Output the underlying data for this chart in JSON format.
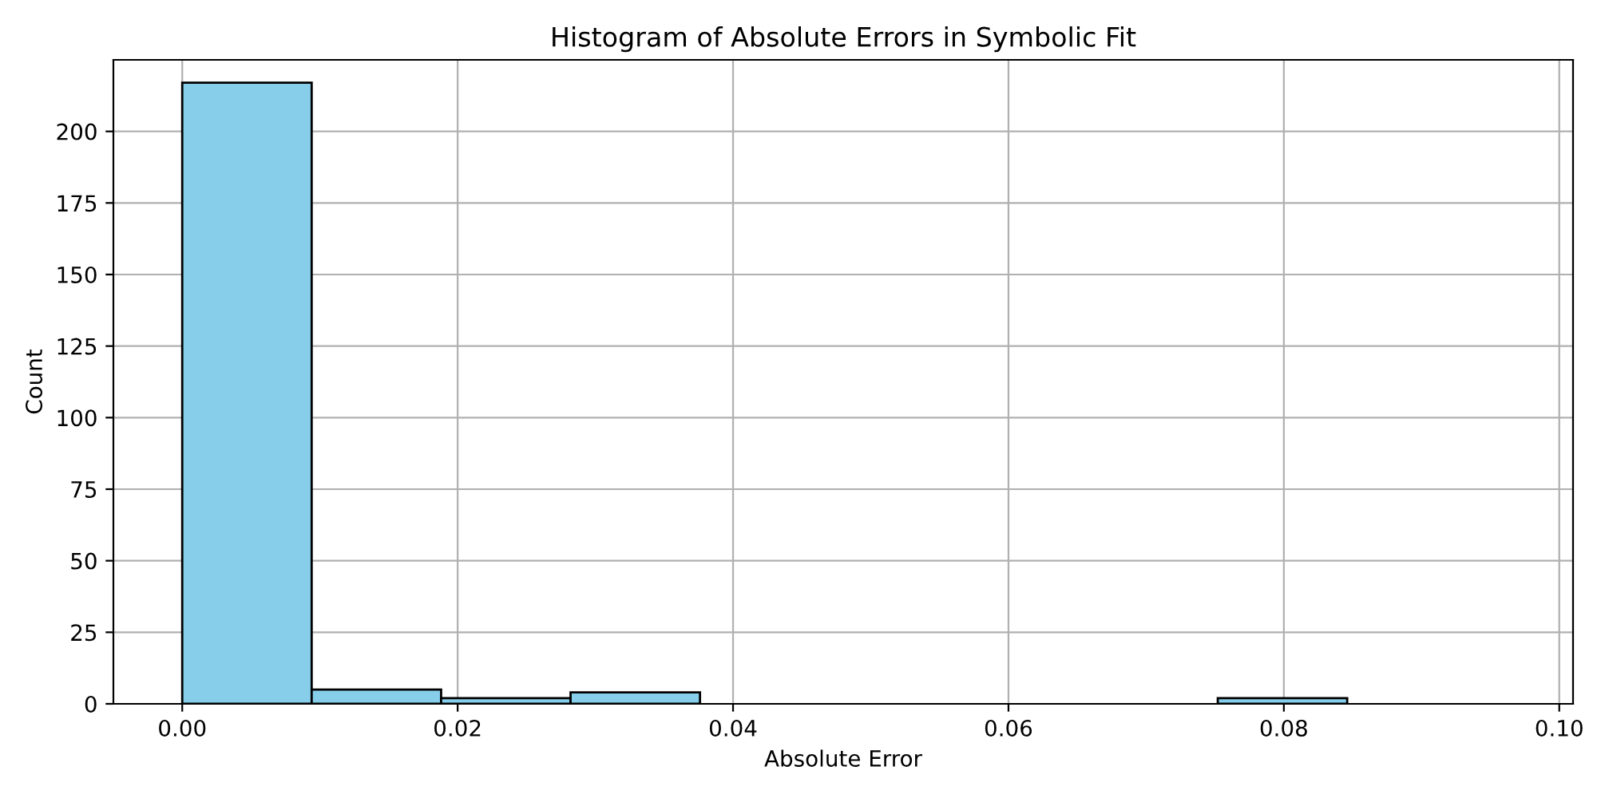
{
  "chart_data": {
    "type": "histogram",
    "title": "Histogram of Absolute Errors in Symbolic Fit",
    "xlabel": "Absolute Error",
    "ylabel": "Count",
    "bins": [
      0,
      0.0094,
      0.0188,
      0.0282,
      0.0376,
      0.047,
      0.0564,
      0.0658,
      0.0752,
      0.0846,
      0.094
    ],
    "values": [
      217,
      5,
      2,
      4,
      0,
      0,
      0,
      0,
      2,
      0
    ],
    "color": "#87ceeb",
    "xlim": [
      -0.005,
      0.101
    ],
    "xticks": [
      {
        "value": 0,
        "label": "0.00"
      },
      {
        "value": 0.02,
        "label": "0.02"
      },
      {
        "value": 0.04,
        "label": "0.04"
      },
      {
        "value": 0.06,
        "label": "0.06"
      },
      {
        "value": 0.08,
        "label": "0.08"
      },
      {
        "value": 0.1,
        "label": "0.10"
      }
    ],
    "ylim": [
      0,
      225
    ],
    "yticks": [
      0,
      25,
      50,
      75,
      100,
      125,
      150,
      175,
      200
    ],
    "grid": true
  }
}
